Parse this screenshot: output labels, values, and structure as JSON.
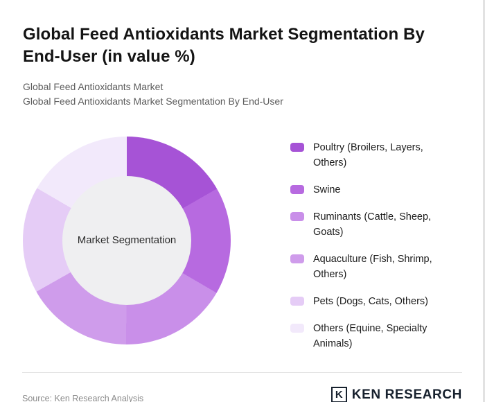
{
  "header": {
    "title": "Global Feed Antioxidants Market Segmentation By End-User (in value %)",
    "subtitle1": "Global Feed Antioxidants Market",
    "subtitle2": "Global Feed Antioxidants Market Segmentation By End-User"
  },
  "chart_data": {
    "type": "pie",
    "donut": true,
    "center_label": "Market Segmentation",
    "legend_position": "right",
    "categories": [
      "Poultry (Broilers, Layers, Others)",
      "Swine",
      "Ruminants (Cattle, Sheep, Goats)",
      "Aquaculture (Fish, Shrimp, Others)",
      "Pets (Dogs, Cats, Others)",
      "Others (Equine, Specialty Animals)"
    ],
    "values": [
      16.7,
      16.7,
      16.7,
      16.7,
      16.6,
      16.6
    ],
    "colors": [
      "#a653d6",
      "#b76ae0",
      "#c98fe9",
      "#cf9ceb",
      "#e5ccf6",
      "#f2e9fb"
    ],
    "hole_color": "#efeff1"
  },
  "footer": {
    "source": "Source: Ken Research Analysis",
    "logo_k": "K",
    "logo_text": "KEN RESEARCH"
  }
}
